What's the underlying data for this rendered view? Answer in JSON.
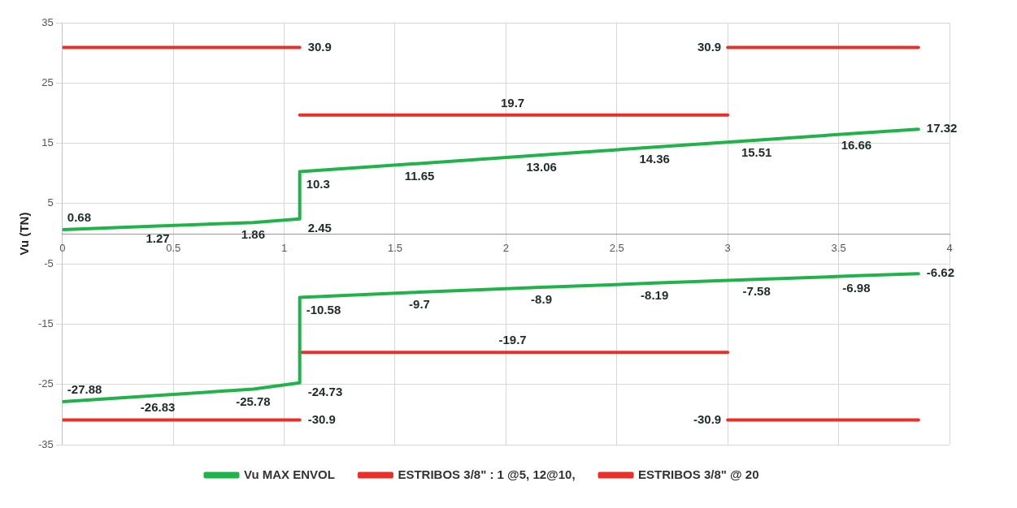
{
  "chart_data": {
    "type": "line",
    "ylabel": "Vu (TN)",
    "xlim": [
      0,
      4
    ],
    "xticks": [
      0,
      0.5,
      1,
      {
        "value": 1.5,
        "label": "1.5"
      },
      2,
      2.5,
      3,
      3.5,
      4
    ],
    "ylim": [
      -35,
      35
    ],
    "yticks": [
      -35,
      -25,
      -15,
      -5,
      5,
      15,
      25,
      35
    ],
    "grid": true,
    "legend": "bottom",
    "marker": "none",
    "line_style": "solid",
    "series": [
      {
        "name": "Vu MAX ENVOL",
        "color": "#22b24c",
        "x": [
          0,
          0.43,
          0.86,
          1.07,
          1.07,
          1.61,
          2.16,
          2.67,
          3.13,
          3.58,
          3.86
        ],
        "values": [
          0.68,
          1.27,
          1.86,
          2.45,
          10.3,
          11.65,
          13.06,
          14.36,
          15.51,
          16.66,
          17.32
        ],
        "data_labels": true
      },
      {
        "color": "#22b24c",
        "x": [
          0,
          0.43,
          0.86,
          1.07,
          1.07,
          1.61,
          2.16,
          2.67,
          3.13,
          3.58,
          3.86
        ],
        "values": [
          -27.88,
          -26.83,
          -25.78,
          -24.73,
          -10.58,
          -9.7,
          -8.9,
          -8.19,
          -7.58,
          -6.98,
          -6.62
        ],
        "data_labels": true
      },
      {
        "name": "ESTRIBOS 3/8\" : 1 @5, 12@10,",
        "color": "#e8302a",
        "x": [
          0,
          1.07
        ],
        "values": [
          30.9,
          30.9
        ],
        "value_labels": [
          null,
          "30.9"
        ]
      },
      {
        "color": "#e8302a",
        "x": [
          3.0,
          3.86
        ],
        "values": [
          30.9,
          30.9
        ],
        "value_labels": [
          "30.9",
          null
        ]
      },
      {
        "color": "#e8302a",
        "x": [
          0,
          1.07
        ],
        "values": [
          -30.9,
          -30.9
        ],
        "value_labels": [
          null,
          "-30.9"
        ]
      },
      {
        "color": "#e8302a",
        "x": [
          3.0,
          3.86
        ],
        "values": [
          -30.9,
          -30.9
        ],
        "value_labels": [
          "-30.9",
          null
        ]
      },
      {
        "name": "ESTRIBOS 3/8\" @ 20",
        "color": "#e8302a",
        "x": [
          1.07,
          2.03,
          3.0
        ],
        "values": [
          19.7,
          19.7,
          19.7
        ],
        "value_labels": [
          null,
          "19.7",
          null
        ]
      },
      {
        "color": "#e8302a",
        "x": [
          1.07,
          2.03,
          3.0
        ],
        "values": [
          -19.7,
          -19.7,
          -19.7
        ],
        "value_labels": [
          null,
          "-19.7",
          null
        ]
      }
    ]
  }
}
